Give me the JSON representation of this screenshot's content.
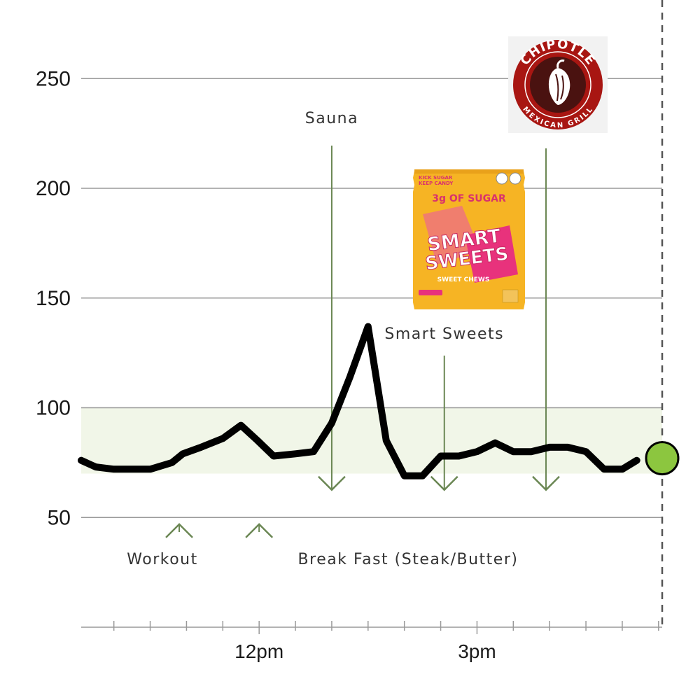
{
  "chart_data": {
    "type": "line",
    "yticks": [
      50,
      100,
      150,
      200,
      250
    ],
    "ylim": [
      0,
      300
    ],
    "xticks": [
      {
        "label": "12pm",
        "value": 12
      },
      {
        "label": "3pm",
        "value": 15
      }
    ],
    "minor_tick_step_hours": 0.5,
    "xlim": [
      9.55,
      17.55
    ],
    "target_range": [
      70,
      100
    ],
    "current_marker": {
      "x": 17.55,
      "y": 77
    },
    "series": [
      {
        "x": [
          9.55,
          9.75,
          10.0,
          10.3,
          10.5,
          10.8,
          10.95,
          11.2,
          11.5,
          11.75,
          11.98,
          12.2,
          12.5,
          12.75,
          13.0,
          13.25,
          13.5,
          13.75,
          14.0,
          14.25,
          14.5,
          14.75,
          15.0,
          15.25,
          15.5,
          15.75,
          16.0,
          16.25,
          16.5,
          16.75,
          17.0,
          17.2
        ],
        "y": [
          76,
          73,
          72,
          72,
          72,
          75,
          79,
          82,
          86,
          92,
          85,
          78,
          79,
          80,
          93,
          114,
          137,
          85,
          69,
          69,
          78,
          78,
          80,
          84,
          80,
          80,
          82,
          82,
          80,
          72,
          72,
          76
        ]
      }
    ],
    "annotations": [
      {
        "label": "Sauna",
        "x": 13.0,
        "y": 120,
        "direction": "down"
      },
      {
        "label": "Smart Sweets",
        "x": 14.55,
        "y": 120,
        "direction": "down"
      },
      {
        "label": "",
        "x": 15.95,
        "y": 120,
        "direction": "down"
      },
      {
        "label": "Workout",
        "x": 10.9,
        "y": 60,
        "direction": "up"
      },
      {
        "label": "Break Fast (Steak/Butter)",
        "x": 12.0,
        "y": 60,
        "direction": "up"
      }
    ],
    "colors": {
      "line": "#000000",
      "target_band": "#f1f6e8",
      "grid": "#9a9a9a",
      "arrow": "#6b8754",
      "marker": "#8cc63f",
      "now_line": "#555555"
    }
  },
  "images": {
    "chipotle_logo": {
      "top_text": "CHIPOTLE",
      "bottom_text": "MEXICAN GRILL",
      "icon": "chili-pepper-icon",
      "colors": {
        "ring": "#a81612",
        "center": "#4a1210",
        "text": "#ffffff"
      }
    },
    "smart_sweets_bag": {
      "corner_text_1": "KICK SUGAR",
      "corner_text_2": "KEEP CANDY",
      "banner": "3g OF SUGAR",
      "brand_1": "SMART",
      "brand_2": "SWEETS",
      "subtitle": "SWEET CHEWS",
      "colors": {
        "bag": "#f6b424",
        "accent": "#e8327c",
        "chew": "#f07e6e",
        "banner_text": "#d9316d"
      }
    }
  }
}
